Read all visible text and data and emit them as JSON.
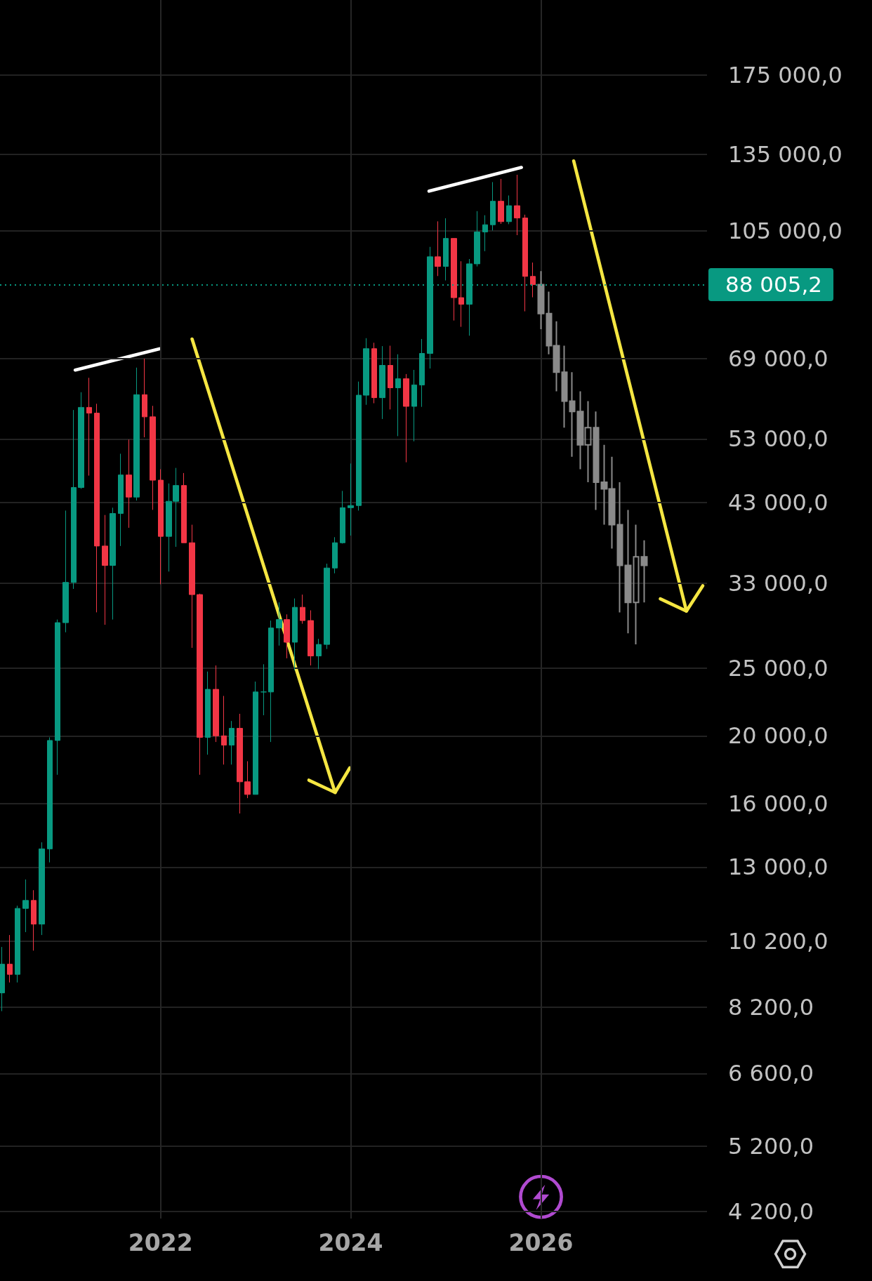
{
  "chart_data": {
    "type": "candlestick",
    "log": true,
    "grid": true,
    "xlim": [
      "2020-04-24",
      "2027-10"
    ],
    "xticks": [
      "2022",
      "2024",
      "2026"
    ],
    "ylim": [
      4100,
      224000
    ],
    "yticks": [
      {
        "value": 4200,
        "label": "4 200,0"
      },
      {
        "value": 5200,
        "label": "5 200,0"
      },
      {
        "value": 6600,
        "label": "6 600,0"
      },
      {
        "value": 8200,
        "label": "8 200,0"
      },
      {
        "value": 10200,
        "label": "10 200,0"
      },
      {
        "value": 13000,
        "label": "13 000,0"
      },
      {
        "value": 16000,
        "label": "16 000,0"
      },
      {
        "value": 20000,
        "label": "20 000,0"
      },
      {
        "value": 25000,
        "label": "25 000,0"
      },
      {
        "value": 33000,
        "label": "33 000,0"
      },
      {
        "value": 43000,
        "label": "43 000,0"
      },
      {
        "value": 53000,
        "label": "53 000,0"
      },
      {
        "value": 69000,
        "label": "69 000,0"
      },
      {
        "value": 105000,
        "label": "105 000,0"
      },
      {
        "value": 135000,
        "label": "135 000,0"
      },
      {
        "value": 175000,
        "label": "175 000,0"
      }
    ],
    "ref_lines": [
      {
        "axis": "y",
        "value": 88005.2,
        "label": "88 005,2",
        "color": "#089981",
        "line_style": "dotted"
      }
    ],
    "series": [
      {
        "x": [
          "2020-05",
          "2020-06",
          "2020-07",
          "2020-08",
          "2020-09",
          "2020-10",
          "2020-11",
          "2020-12",
          "2021-01",
          "2021-02",
          "2021-03",
          "2021-04",
          "2021-05",
          "2021-06",
          "2021-07",
          "2021-08",
          "2021-09",
          "2021-10",
          "2021-11",
          "2021-12",
          "2022-01",
          "2022-02",
          "2022-03",
          "2022-04",
          "2022-05",
          "2022-06",
          "2022-07",
          "2022-08",
          "2022-09",
          "2022-10",
          "2022-11",
          "2022-12",
          "2023-01",
          "2023-02",
          "2023-03",
          "2023-04",
          "2023-05",
          "2023-06",
          "2023-07",
          "2023-08",
          "2023-09",
          "2023-10",
          "2023-11",
          "2023-12",
          "2024-01",
          "2024-02",
          "2024-03",
          "2024-04",
          "2024-05",
          "2024-06",
          "2024-07",
          "2024-08",
          "2024-09",
          "2024-10",
          "2024-11",
          "2024-12",
          "2025-01",
          "2025-02",
          "2025-03",
          "2025-04",
          "2025-05",
          "2025-06",
          "2025-07",
          "2025-08",
          "2025-09",
          "2025-10",
          "2025-11",
          "2025-12"
        ],
        "ohlc": [
          [
            8600,
            10000,
            8100,
            9450
          ],
          [
            9450,
            10400,
            8900,
            9140
          ],
          [
            9140,
            11450,
            8900,
            11350
          ],
          [
            11350,
            12480,
            10500,
            11650
          ],
          [
            11650,
            12050,
            9880,
            10780
          ],
          [
            10780,
            14100,
            10400,
            13800
          ],
          [
            13800,
            19900,
            13200,
            19700
          ],
          [
            19700,
            29300,
            17600,
            29000
          ],
          [
            29000,
            41900,
            28100,
            33100
          ],
          [
            33100,
            58300,
            32400,
            45200
          ],
          [
            45200,
            61800,
            45000,
            58800
          ],
          [
            58800,
            64800,
            47000,
            57700
          ],
          [
            57700,
            59500,
            30000,
            37300
          ],
          [
            37300,
            41300,
            28800,
            35000
          ],
          [
            35000,
            42300,
            29300,
            41500
          ],
          [
            41500,
            50500,
            37300,
            47100
          ],
          [
            47100,
            52900,
            39600,
            43800
          ],
          [
            43800,
            67000,
            43300,
            61300
          ],
          [
            61300,
            69000,
            53300,
            57000
          ],
          [
            57000,
            59100,
            42000,
            46300
          ],
          [
            46300,
            48000,
            32900,
            38500
          ],
          [
            38500,
            45800,
            34300,
            43200
          ],
          [
            43200,
            48200,
            37200,
            45500
          ],
          [
            45500,
            47400,
            37700,
            37700
          ],
          [
            37700,
            40000,
            26700,
            31800
          ],
          [
            31800,
            31900,
            17600,
            19900
          ],
          [
            19900,
            24700,
            18800,
            23300
          ],
          [
            23300,
            25200,
            19600,
            20000
          ],
          [
            20000,
            22800,
            18200,
            19400
          ],
          [
            19400,
            21000,
            18200,
            20500
          ],
          [
            20500,
            21500,
            15500,
            17200
          ],
          [
            17200,
            18400,
            16300,
            16500
          ],
          [
            16500,
            23900,
            16500,
            23100
          ],
          [
            23100,
            25300,
            21400,
            23100
          ],
          [
            23100,
            29200,
            19600,
            28500
          ],
          [
            28500,
            31000,
            26900,
            29300
          ],
          [
            29300,
            29800,
            25800,
            27200
          ],
          [
            27200,
            31400,
            24800,
            30500
          ],
          [
            30500,
            31800,
            28900,
            29200
          ],
          [
            29200,
            30200,
            25200,
            26000
          ],
          [
            26000,
            27500,
            24900,
            27000
          ],
          [
            27000,
            35200,
            26600,
            34700
          ],
          [
            34700,
            38400,
            34100,
            37700
          ],
          [
            37700,
            44700,
            37600,
            42300
          ],
          [
            42300,
            48900,
            38600,
            42600
          ],
          [
            42600,
            64000,
            41900,
            61200
          ],
          [
            61200,
            73800,
            59300,
            71300
          ],
          [
            71300,
            72700,
            59600,
            60700
          ],
          [
            60700,
            71900,
            56600,
            67500
          ],
          [
            67500,
            72000,
            58400,
            62700
          ],
          [
            62700,
            70000,
            53500,
            64600
          ],
          [
            64600,
            65600,
            49100,
            59000
          ],
          [
            59000,
            66500,
            52600,
            63300
          ],
          [
            63300,
            73600,
            58900,
            70200
          ],
          [
            70200,
            99600,
            66800,
            96400
          ],
          [
            96400,
            108300,
            90500,
            93400
          ],
          [
            93400,
            109400,
            89200,
            102400
          ],
          [
            102400,
            102500,
            78200,
            84300
          ],
          [
            84300,
            95000,
            76600,
            82500
          ],
          [
            82500,
            95700,
            74400,
            94200
          ],
          [
            94200,
            112000,
            93400,
            104600
          ],
          [
            104600,
            110500,
            98200,
            107100
          ],
          [
            107100,
            123200,
            105100,
            115700
          ],
          [
            115700,
            124500,
            107400,
            108200
          ],
          [
            108200,
            117900,
            107300,
            114000
          ],
          [
            114000,
            126200,
            103500,
            109500
          ],
          [
            109500,
            110700,
            80600,
            90400
          ],
          [
            90400,
            94600,
            84400,
            88000
          ]
        ]
      },
      {
        "color": "#8a8a8a",
        "x": [
          "2026-01",
          "2026-02",
          "2026-03",
          "2026-04",
          "2026-05",
          "2026-06",
          "2026-07",
          "2026-08",
          "2026-09",
          "2026-10",
          "2026-11",
          "2026-12",
          "2027-01",
          "2027-02"
        ],
        "ohlc": [
          [
            88000,
            92000,
            76000,
            80000
          ],
          [
            80000,
            86000,
            70000,
            72000
          ],
          [
            72000,
            78000,
            62000,
            66000
          ],
          [
            66000,
            72000,
            55000,
            60000
          ],
          [
            60000,
            66000,
            50000,
            58000
          ],
          [
            58000,
            62000,
            48000,
            52000
          ],
          [
            52000,
            60000,
            46000,
            55000
          ],
          [
            55000,
            58000,
            42000,
            46000
          ],
          [
            46000,
            52000,
            40000,
            45000
          ],
          [
            45000,
            50000,
            37000,
            40000
          ],
          [
            40000,
            46000,
            30000,
            35000
          ],
          [
            35000,
            42000,
            28000,
            31000
          ],
          [
            31000,
            40000,
            27000,
            36000
          ],
          [
            36000,
            38000,
            31000,
            35000
          ]
        ]
      }
    ]
  }
}
